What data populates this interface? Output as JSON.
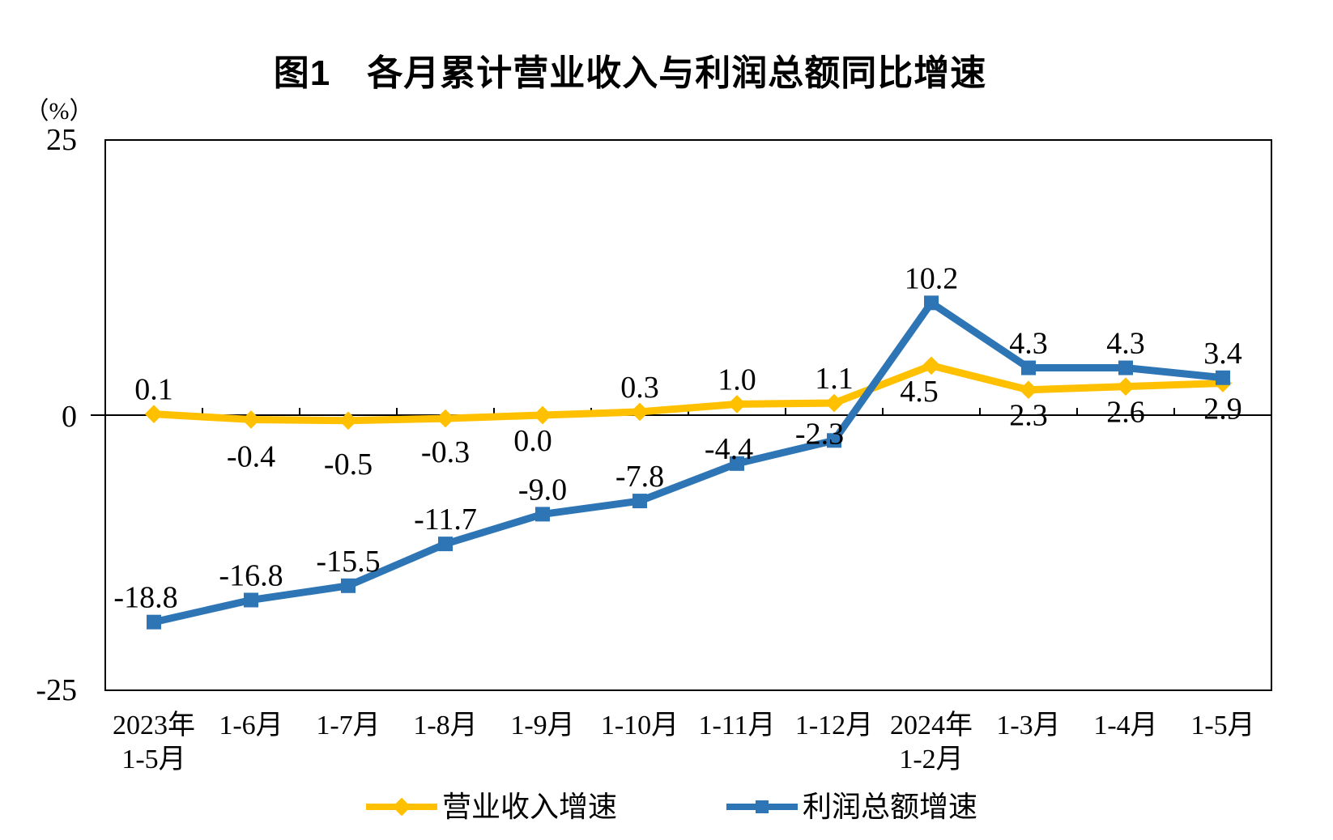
{
  "chart_data": {
    "type": "line",
    "title": "图1　各月累计营业收入与利润总额同比增速",
    "unit_label": "（%）",
    "ylim": [
      -25,
      25
    ],
    "grid": false,
    "legend_position": "bottom",
    "yticks": [
      {
        "value": 25,
        "label": "25"
      },
      {
        "value": 0,
        "label": "0"
      },
      {
        "value": -25,
        "label": "-25"
      }
    ],
    "categories": [
      [
        "2023年",
        "1-5月"
      ],
      [
        "1-6月"
      ],
      [
        "1-7月"
      ],
      [
        "1-8月"
      ],
      [
        "1-9月"
      ],
      [
        "1-10月"
      ],
      [
        "1-11月"
      ],
      [
        "1-12月"
      ],
      [
        "2024年",
        "1-2月"
      ],
      [
        "1-3月"
      ],
      [
        "1-4月"
      ],
      [
        "1-5月"
      ]
    ],
    "series": [
      {
        "name": "营业收入增速",
        "color": "#FFC000",
        "marker": "diamond",
        "values": [
          0.1,
          -0.4,
          -0.5,
          -0.3,
          0.0,
          0.3,
          1.0,
          1.1,
          4.5,
          2.3,
          2.6,
          2.9
        ],
        "labels": [
          "0.1",
          "-0.4",
          "-0.5",
          "-0.3",
          "0.0",
          "0.3",
          "1.0",
          "1.1",
          "4.5",
          "2.3",
          "2.6",
          "2.9"
        ],
        "label_pos": [
          "above",
          "below",
          "below",
          "below",
          "below",
          "above",
          "above",
          "above",
          "below",
          "below",
          "below",
          "below"
        ],
        "label_dx": [
          0,
          0,
          0,
          0,
          -12,
          0,
          0,
          0,
          -15,
          0,
          0,
          0
        ],
        "label_dy": [
          0,
          14,
          22,
          10,
          0,
          0,
          0,
          0,
          0,
          0,
          0,
          0
        ]
      },
      {
        "name": "利润总额增速",
        "color": "#2E75B6",
        "marker": "square",
        "values": [
          -18.8,
          -16.8,
          -15.5,
          -11.7,
          -9.0,
          -7.8,
          -4.4,
          -2.3,
          10.2,
          4.3,
          4.3,
          3.4
        ],
        "labels": [
          "-18.8",
          "-16.8",
          "-15.5",
          "-11.7",
          "-9.0",
          "-7.8",
          "-4.4",
          "-2.3",
          "10.2",
          "4.3",
          "4.3",
          "3.4"
        ],
        "label_pos": [
          "above",
          "above",
          "above",
          "above",
          "above",
          "above",
          "above",
          "above",
          "above",
          "above",
          "above",
          "above"
        ],
        "label_dx": [
          -10,
          0,
          0,
          0,
          0,
          0,
          -10,
          -18,
          0,
          0,
          0,
          0
        ],
        "label_dy": [
          0,
          0,
          0,
          0,
          0,
          0,
          12,
          22,
          0,
          0,
          0,
          0
        ]
      }
    ]
  }
}
